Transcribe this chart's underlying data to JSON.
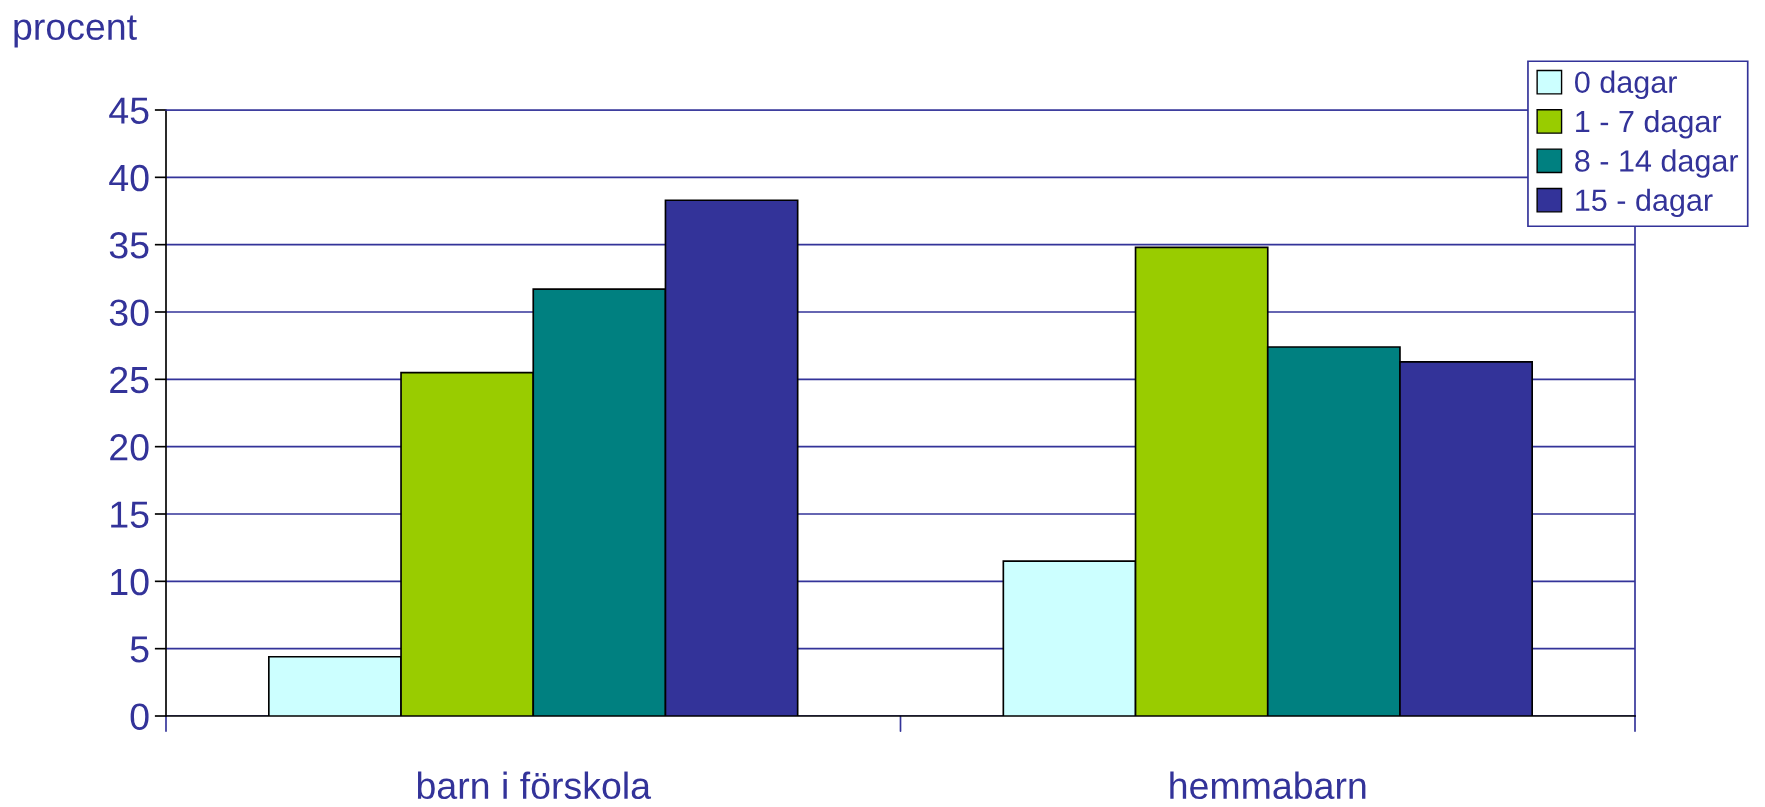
{
  "chart_data": {
    "type": "bar",
    "ylabel": "procent",
    "categories": [
      "barn i förskola",
      "hemmabarn"
    ],
    "series": [
      {
        "name": "0 dagar",
        "color": "#ccffff",
        "values": [
          4.4,
          11.5
        ]
      },
      {
        "name": "1 - 7 dagar",
        "color": "#99cc00",
        "values": [
          25.5,
          34.8
        ]
      },
      {
        "name": "8 - 14 dagar",
        "color": "#008080",
        "values": [
          31.7,
          27.4
        ]
      },
      {
        "name": "15 - dagar",
        "color": "#333399",
        "values": [
          38.3,
          26.3
        ]
      }
    ],
    "ylim": [
      0,
      45
    ],
    "yticks": [
      0,
      5,
      10,
      15,
      20,
      25,
      30,
      35,
      40,
      45
    ],
    "grid": "y",
    "legend": "top right"
  }
}
